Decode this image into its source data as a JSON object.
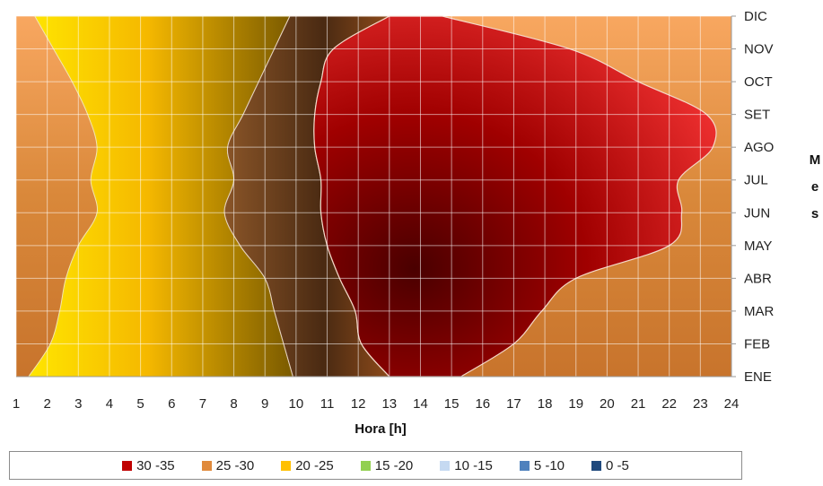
{
  "chart_data": {
    "type": "heatmap",
    "xlabel": "Hora [h]",
    "ylabel": "Mes",
    "xlim": [
      1,
      24
    ],
    "x_ticks": [
      "1",
      "2",
      "3",
      "4",
      "5",
      "6",
      "7",
      "8",
      "9",
      "10",
      "11",
      "12",
      "13",
      "14",
      "15",
      "16",
      "17",
      "18",
      "19",
      "20",
      "21",
      "22",
      "23",
      "24"
    ],
    "y_ticks": [
      "ENE",
      "FEB",
      "MAR",
      "ABR",
      "MAY",
      "JUN",
      "JUL",
      "AGO",
      "SET",
      "OCT",
      "NOV",
      "DIC"
    ],
    "grid": true,
    "legend_position": "bottom",
    "legend": [
      {
        "label": "30 -35",
        "color": "#c00000"
      },
      {
        "label": "25 -30",
        "color": "#e08a3c"
      },
      {
        "label": "20 -25",
        "color": "#ffc000"
      },
      {
        "label": "15 -20",
        "color": "#92d050"
      },
      {
        "label": "10 -15",
        "color": "#c5d9f1"
      },
      {
        "label": "5 -10",
        "color": "#4f81bd"
      },
      {
        "label": "0 -5",
        "color": "#1f497d"
      }
    ],
    "boundaries": {
      "yellow_left_edge": [
        1.4,
        2.1,
        2.4,
        2.6,
        3.0,
        3.6,
        3.4,
        3.6,
        3.3,
        2.8,
        2.2,
        1.6
      ],
      "yellow_right_edge": [
        9.9,
        9.6,
        9.3,
        9.0,
        8.2,
        7.7,
        8.0,
        7.8,
        8.3,
        8.8,
        9.3,
        9.8
      ],
      "red_left_edge": [
        13.0,
        12.1,
        11.9,
        11.4,
        11.0,
        10.8,
        10.8,
        10.6,
        10.6,
        10.8,
        11.2,
        13.0
      ],
      "red_right_edge": [
        15.3,
        17.0,
        17.9,
        19.0,
        22.0,
        22.4,
        22.3,
        23.4,
        23.2,
        21.0,
        18.8,
        14.7
      ]
    }
  },
  "legend_ui": [
    {
      "label": "30 -35",
      "color": "#c00000"
    },
    {
      "label": "25 -30",
      "color": "#e08a3c"
    },
    {
      "label": "20 -25",
      "color": "#ffc000"
    },
    {
      "label": "15 -20",
      "color": "#92d050"
    },
    {
      "label": "10 -15",
      "color": "#c5d9f1"
    },
    {
      "label": "5 -10",
      "color": "#4f81bd"
    },
    {
      "label": "0 -5",
      "color": "#1f497d"
    }
  ]
}
